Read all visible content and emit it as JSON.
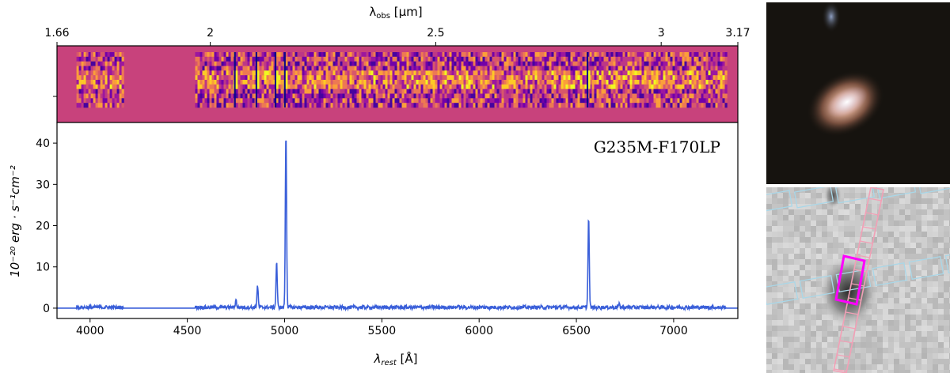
{
  "chart_data": [
    {
      "type": "heatmap",
      "name": "2D spectrum",
      "title": "",
      "top_axis": {
        "label_main": "λ",
        "label_sub": "obs",
        "label_unit": " [μm]",
        "ticks": [
          {
            "value": 1.66,
            "label": "1.66"
          },
          {
            "value": 2.0,
            "label": "2"
          },
          {
            "value": 2.5,
            "label": "2.5"
          },
          {
            "value": 3.0,
            "label": "3"
          },
          {
            "value": 3.17,
            "label": "3.17"
          }
        ],
        "range": [
          1.66,
          3.17
        ]
      },
      "colormap": "plasma",
      "emission_lines_rest_angstrom": [
        4750,
        4861,
        4959,
        5007,
        6563
      ],
      "data_coverage_rest_angstrom": [
        [
          3930,
          4170
        ],
        [
          4540,
          7270
        ]
      ],
      "background_color": "#c8427c"
    },
    {
      "type": "line",
      "name": "1D spectrum",
      "annotation": "G235M-F170LP",
      "xlabel_main": "λ",
      "xlabel_sub": "rest",
      "xlabel_unit": " [Å]",
      "ylabel": "10⁻²⁰ erg · s⁻¹cm⁻²",
      "xlim": [
        3830,
        7330
      ],
      "ylim": [
        -2.5,
        45
      ],
      "xticks": [
        4000,
        4500,
        5000,
        5500,
        6000,
        6500,
        7000
      ],
      "yticks": [
        0,
        10,
        20,
        30,
        40
      ],
      "series_color": "#3a5fd9",
      "continuum_level": 0.2,
      "peaks": [
        {
          "x": 4750,
          "y": 2.0
        },
        {
          "x": 4861,
          "y": 5.5
        },
        {
          "x": 4959,
          "y": 11.2
        },
        {
          "x": 5007,
          "y": 42.7
        },
        {
          "x": 6563,
          "y": 22.0
        }
      ],
      "secondary_peaks": [
        {
          "x": 6720,
          "y": 0.9
        },
        {
          "x": 5890,
          "y": 0.6
        }
      ]
    }
  ],
  "images": {
    "photo": {
      "name": "galaxy color cutout"
    },
    "stamp": {
      "name": "msa slit overlay",
      "slit_color": "#ff00ff",
      "shutter_color": "#a9d7e8",
      "trace_color": "#f2a0b6"
    }
  }
}
